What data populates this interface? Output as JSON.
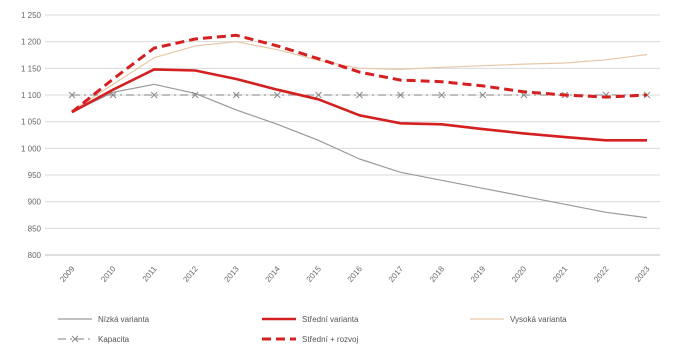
{
  "chart_data": {
    "type": "line",
    "title": "",
    "xlabel": "",
    "ylabel": "",
    "x": [
      "2009",
      "2010",
      "2011",
      "2012",
      "2013",
      "2014",
      "2015",
      "2016",
      "2017",
      "2018",
      "2019",
      "2020",
      "2021",
      "2022",
      "2023"
    ],
    "ylim": [
      800,
      1250
    ],
    "yticks": [
      "800",
      "850",
      "900",
      "950",
      "1 000",
      "1 050",
      "1 100",
      "1 150",
      "1 200",
      "1 250"
    ],
    "grid": true,
    "legend_position": "bottom",
    "series": [
      {
        "name": "Nízká varianta",
        "color": "#9a9a9a",
        "style": "solid-thin",
        "values": [
          1068,
          1105,
          1120,
          1103,
          1072,
          1045,
          1015,
          980,
          955,
          940,
          925,
          910,
          895,
          880,
          870
        ]
      },
      {
        "name": "Střední varianta",
        "color": "#d42020",
        "style": "solid-thick",
        "values": [
          1068,
          1110,
          1148,
          1146,
          1130,
          1110,
          1092,
          1062,
          1047,
          1045,
          1036,
          1028,
          1021,
          1015,
          1015
        ]
      },
      {
        "name": "Vysoká varianta",
        "color": "#e6c8a8",
        "style": "solid-thin",
        "values": [
          1070,
          1120,
          1170,
          1192,
          1200,
          1185,
          1165,
          1150,
          1148,
          1152,
          1155,
          1158,
          1160,
          1166,
          1176
        ]
      },
      {
        "name": "Kapacita",
        "color": "#9a9a9a",
        "style": "dash-dot",
        "values": [
          1100,
          1100,
          1100,
          1100,
          1100,
          1100,
          1100,
          1100,
          1100,
          1100,
          1100,
          1100,
          1100,
          1100,
          1100
        ]
      },
      {
        "name": "Střední + rozvoj",
        "color": "#d42020",
        "style": "dashed-thick",
        "values": [
          1068,
          1130,
          1188,
          1205,
          1212,
          1192,
          1168,
          1143,
          1128,
          1125,
          1117,
          1106,
          1100,
          1096,
          1100
        ]
      }
    ]
  },
  "legend": [
    {
      "label": "Nízká varianta",
      "style": "solid-thin",
      "color": "#9a9a9a"
    },
    {
      "label": "Střední varianta",
      "style": "solid-thick",
      "color": "#d42020"
    },
    {
      "label": "Vysoká varianta",
      "style": "solid-thin",
      "color": "#e6c8a8"
    },
    {
      "label": "Kapacita",
      "style": "dash-dot",
      "color": "#9a9a9a"
    },
    {
      "label": "Střední + rozvoj",
      "style": "dashed-thick",
      "color": "#d42020"
    }
  ]
}
